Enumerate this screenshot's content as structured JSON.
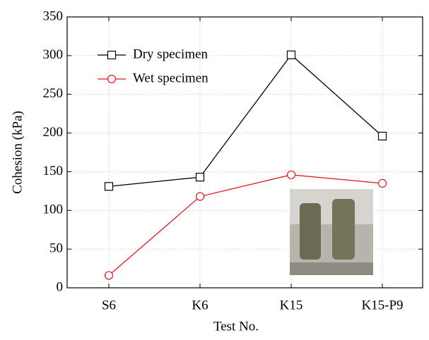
{
  "chart_data": {
    "type": "line",
    "x_label": "Test No.",
    "y_label": "Cohesion  (kPa)",
    "categories": [
      "S6",
      "K6",
      "K15",
      "K15-P9"
    ],
    "series": [
      {
        "name": "Dry specimen",
        "color": "#000000",
        "marker": "square",
        "values": [
          131,
          143,
          301,
          196
        ]
      },
      {
        "name": "Wet specimen",
        "color": "#e8171d",
        "marker": "circle",
        "values": [
          16,
          118,
          146,
          135
        ]
      }
    ],
    "ylim": [
      0,
      350
    ],
    "yticks": [
      0,
      50,
      100,
      150,
      200,
      250,
      300,
      350
    ],
    "grid": true,
    "legend": "upper left"
  }
}
